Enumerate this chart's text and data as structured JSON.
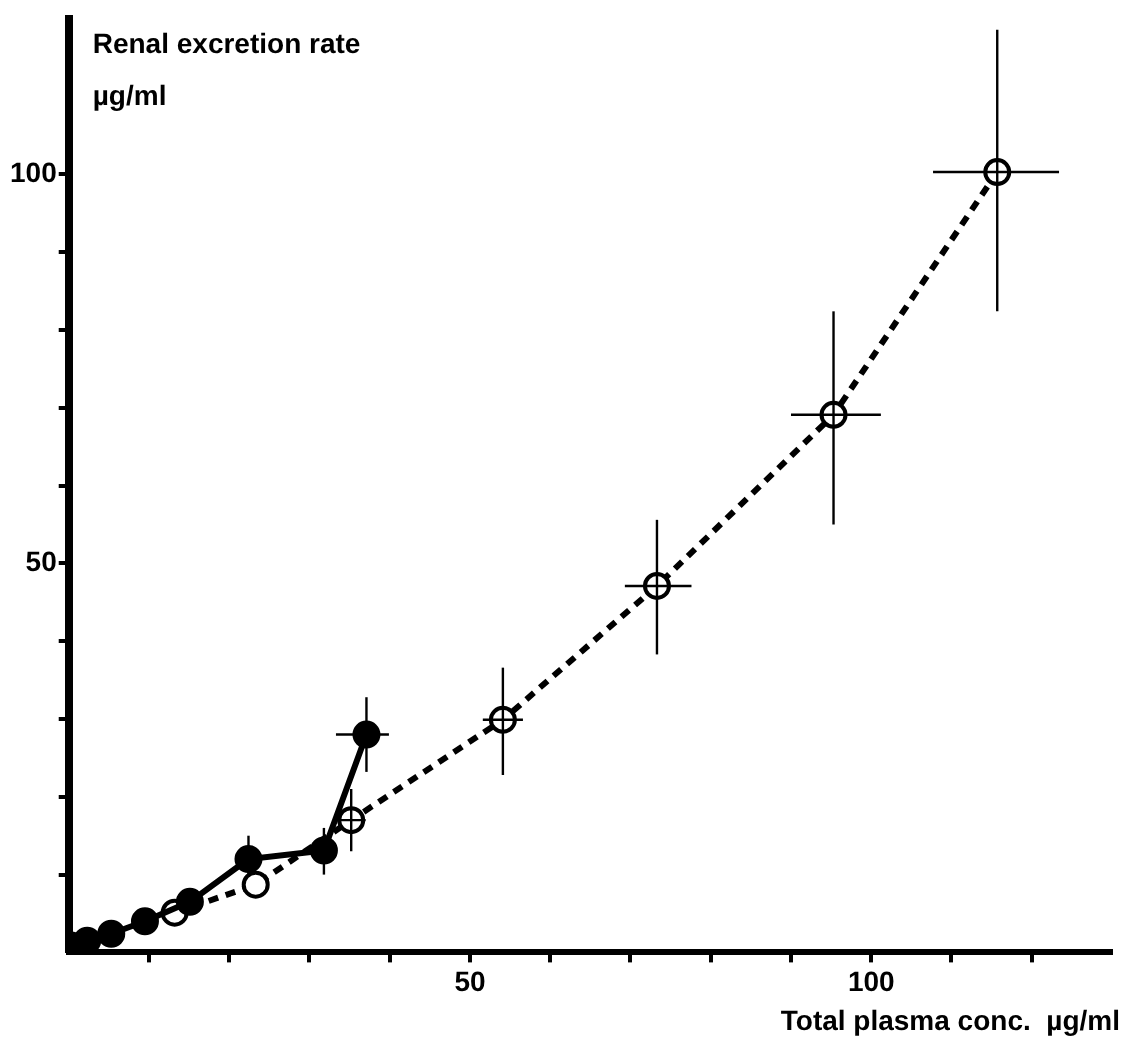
{
  "chart_data": {
    "type": "line",
    "xlabel": "Total plasma conc.  µg/ml",
    "ylabel": "Renal excretion rate\nµg/ml",
    "xlim": [
      0,
      130
    ],
    "ylim": [
      0,
      120
    ],
    "xticks": [
      {
        "value": 10,
        "label": null
      },
      {
        "value": 20,
        "label": null
      },
      {
        "value": 30,
        "label": null
      },
      {
        "value": 40,
        "label": null
      },
      50,
      {
        "value": 60,
        "label": null
      },
      {
        "value": 70,
        "label": null
      },
      {
        "value": 80,
        "label": null
      },
      {
        "value": 90,
        "label": null
      },
      100,
      {
        "value": 110,
        "label": null
      },
      {
        "value": 120,
        "label": null
      }
    ],
    "yticks": [
      {
        "value": 10,
        "label": null
      },
      {
        "value": 20,
        "label": null
      },
      {
        "value": 30,
        "label": null
      },
      {
        "value": 40,
        "label": null
      },
      50,
      {
        "value": 60,
        "label": null
      },
      {
        "value": 70,
        "label": null
      },
      {
        "value": 80,
        "label": null
      },
      {
        "value": 90,
        "label": null
      },
      100
    ],
    "grid": false,
    "legend": false,
    "marker": "circle",
    "series": [
      {
        "color": "#000000",
        "line_style": "solid",
        "x": [
          0.3,
          2.3,
          5.3,
          9.5,
          15.1,
          22.4,
          31.8,
          37.1
        ],
        "values": [
          0.9,
          1.5,
          2.4,
          4.0,
          6.5,
          12.0,
          13.1,
          28.0
        ],
        "errors": [
          null,
          null,
          null,
          null,
          null,
          [
            10,
            15
          ],
          [
            10,
            16
          ],
          [
            23.2,
            32.8
          ]
        ],
        "xerrors": [
          null,
          null,
          null,
          null,
          null,
          null,
          null,
          [
            33.3,
            39.9
          ]
        ]
      },
      {
        "color": "#000000",
        "line_style": "dashed",
        "x": [
          13.2,
          23.3,
          35.2,
          54.1,
          73.3,
          95.3,
          115.7
        ],
        "values": [
          5.1,
          8.7,
          17.0,
          29.9,
          47.1,
          69.1,
          100.3
        ],
        "errors": [
          null,
          null,
          [
            13,
            21
          ],
          [
            22.8,
            36.6
          ],
          [
            38.3,
            55.6
          ],
          [
            55.0,
            82.4
          ],
          [
            82.4,
            118.6
          ]
        ],
        "xerrors": [
          null,
          null,
          [
            33,
            37
          ],
          [
            51.6,
            56.6
          ],
          [
            69.3,
            77.6
          ],
          [
            90.0,
            101.2
          ],
          [
            107.7,
            123.4
          ]
        ]
      }
    ]
  }
}
